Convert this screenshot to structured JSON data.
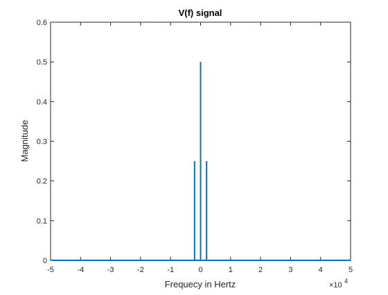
{
  "chart_data": {
    "type": "line",
    "title": "V(f) signal",
    "xlabel": "Frequecy in Hertz",
    "ylabel": "Magnitude",
    "x_exponent_label": "×10",
    "x_exponent_power": "4",
    "xlim": [
      -5,
      5
    ],
    "ylim": [
      0,
      0.6
    ],
    "x_ticks": [
      "-5",
      "-4",
      "-3",
      "-2",
      "-1",
      "0",
      "1",
      "2",
      "3",
      "4",
      "5"
    ],
    "y_ticks": [
      "0",
      "0.1",
      "0.2",
      "0.3",
      "0.4",
      "0.5",
      "0.6"
    ],
    "grid": false,
    "series": [
      {
        "color": "#0072BD",
        "x": [
          -5,
          -0.2,
          -0.2,
          -0.2,
          0,
          0,
          0,
          0.2,
          0.2,
          0.2,
          5
        ],
        "values": [
          0,
          0,
          0.25,
          0,
          0,
          0.5,
          0,
          0,
          0.25,
          0,
          0
        ]
      }
    ]
  }
}
